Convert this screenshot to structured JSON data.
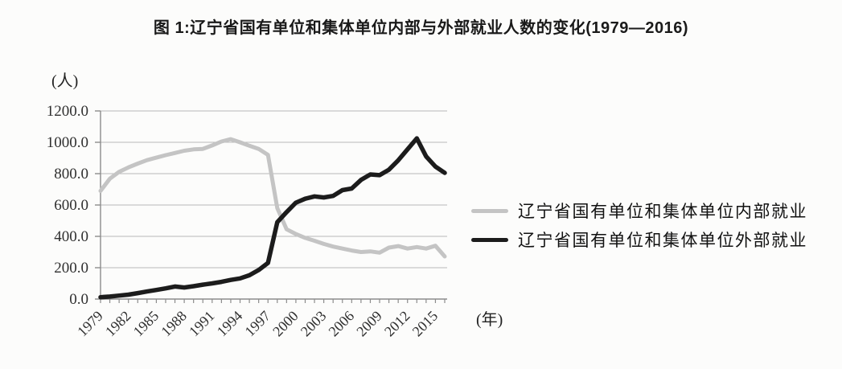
{
  "title": "图 1:辽宁省国有单位和集体单位内部与外部就业人数的变化(1979—2016)",
  "units": {
    "y": "(人)",
    "x": "(年)"
  },
  "legend": {
    "items": [
      {
        "label": "辽宁省国有单位和集体单位内部就业",
        "color": "#c4c4c4"
      },
      {
        "label": "辽宁省国有单位和集体单位外部就业",
        "color": "#1c1c1c"
      }
    ]
  },
  "chart_data": {
    "type": "line",
    "title": "图 1:辽宁省国有单位和集体单位内部与外部就业人数的变化(1979—2016)",
    "xlabel": "(年)",
    "ylabel": "(人)",
    "grid": true,
    "legend_position": "right",
    "ylim": [
      0,
      1200
    ],
    "yticks": [
      0,
      200,
      400,
      600,
      800,
      1000,
      1200
    ],
    "ytick_labels": [
      "0.0",
      "200.0",
      "400.0",
      "600.0",
      "800.0",
      "1000.0",
      "1200.0"
    ],
    "xtick_label_years": [
      1979,
      1982,
      1985,
      1988,
      1991,
      1994,
      1997,
      2000,
      2003,
      2006,
      2009,
      2012,
      2015
    ],
    "x": [
      1979,
      1980,
      1981,
      1982,
      1983,
      1984,
      1985,
      1986,
      1987,
      1988,
      1989,
      1990,
      1991,
      1992,
      1993,
      1994,
      1995,
      1996,
      1997,
      1998,
      1999,
      2000,
      2001,
      2002,
      2003,
      2004,
      2005,
      2006,
      2007,
      2008,
      2009,
      2010,
      2011,
      2012,
      2013,
      2014,
      2015,
      2016
    ],
    "series": [
      {
        "name": "辽宁省国有单位和集体单位内部就业",
        "color": "#c4c4c4",
        "values": [
          690,
          768,
          812,
          840,
          864,
          886,
          902,
          918,
          932,
          946,
          955,
          958,
          980,
          1005,
          1020,
          1000,
          978,
          958,
          920,
          580,
          445,
          415,
          390,
          372,
          352,
          335,
          322,
          310,
          300,
          304,
          296,
          328,
          338,
          322,
          332,
          322,
          340,
          272
        ]
      },
      {
        "name": "辽宁省国有单位和集体单位外部就业",
        "color": "#1c1c1c",
        "values": [
          12,
          16,
          22,
          28,
          38,
          48,
          58,
          68,
          80,
          74,
          82,
          92,
          100,
          110,
          122,
          132,
          152,
          185,
          230,
          490,
          555,
          615,
          640,
          655,
          648,
          658,
          695,
          705,
          760,
          795,
          790,
          825,
          885,
          955,
          1025,
          910,
          845,
          805
        ]
      }
    ]
  }
}
